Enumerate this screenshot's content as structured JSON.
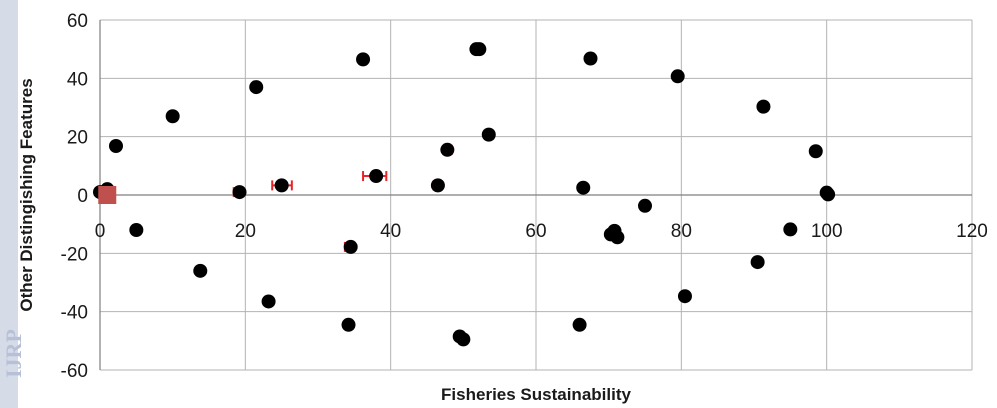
{
  "side_mark_text": "IJRP",
  "chart_data": {
    "type": "scatter",
    "title": "",
    "xlabel": "Fisheries Sustainability",
    "ylabel": "Other Distingishing Features",
    "xlim": [
      0,
      120
    ],
    "ylim": [
      -60,
      60
    ],
    "x_ticks": [
      0,
      20,
      40,
      60,
      80,
      100,
      120
    ],
    "y_ticks": [
      -60,
      -40,
      -20,
      0,
      20,
      40,
      60
    ],
    "grid": true,
    "legend": "none",
    "colors": {
      "points": "#000000",
      "highlight": "#c0504d",
      "error_bars": "#e8242b",
      "grid": "#b3b3b3"
    },
    "series": [
      {
        "points": [
          {
            "x": 0,
            "y": 1
          },
          {
            "x": 1,
            "y": 2
          },
          {
            "x": 2.2,
            "y": 16.8
          },
          {
            "x": 5,
            "y": -12
          },
          {
            "x": 10,
            "y": 27
          },
          {
            "x": 13.8,
            "y": -26
          },
          {
            "x": 19.2,
            "y": 1
          },
          {
            "x": 21.5,
            "y": 37
          },
          {
            "x": 23.2,
            "y": -36.5
          },
          {
            "x": 25,
            "y": 3.3
          },
          {
            "x": 34.2,
            "y": -44.5
          },
          {
            "x": 34.5,
            "y": -17.8
          },
          {
            "x": 36.2,
            "y": 46.5
          },
          {
            "x": 38,
            "y": 6.5
          },
          {
            "x": 46.5,
            "y": 3.3
          },
          {
            "x": 47.8,
            "y": 15.5
          },
          {
            "x": 49.5,
            "y": -48.5
          },
          {
            "x": 50,
            "y": -49.5
          },
          {
            "x": 51.8,
            "y": 50
          },
          {
            "x": 52.2,
            "y": 50
          },
          {
            "x": 53.5,
            "y": 20.7
          },
          {
            "x": 66,
            "y": -44.5
          },
          {
            "x": 66.5,
            "y": 2.5
          },
          {
            "x": 67.5,
            "y": 46.8
          },
          {
            "x": 70.3,
            "y": -13.5
          },
          {
            "x": 70.8,
            "y": -12.3
          },
          {
            "x": 71.2,
            "y": -14.5
          },
          {
            "x": 75,
            "y": -3.7
          },
          {
            "x": 79.5,
            "y": 40.7
          },
          {
            "x": 80.5,
            "y": -34.7
          },
          {
            "x": 90.5,
            "y": -23
          },
          {
            "x": 91.3,
            "y": 30.3
          },
          {
            "x": 95,
            "y": -11.8
          },
          {
            "x": 98.5,
            "y": 15
          },
          {
            "x": 100,
            "y": 0.8
          },
          {
            "x": 100.2,
            "y": 0.2
          }
        ]
      },
      {
        "marker": "square",
        "points": [
          {
            "x": 1,
            "y": 0
          }
        ]
      }
    ],
    "error_bars": [
      {
        "x": 19.2,
        "y": 1,
        "x_minus": 0.8,
        "x_plus": 0.4
      },
      {
        "x": 25,
        "y": 3.3,
        "x_minus": 1.3,
        "x_plus": 1.4
      },
      {
        "x": 34.5,
        "y": -17.8,
        "x_minus": 0.8,
        "x_plus": 0
      },
      {
        "x": 38,
        "y": 6.5,
        "x_minus": 1.8,
        "x_plus": 1.4
      },
      {
        "x": 46.5,
        "y": 3.3,
        "x_minus": 0.6,
        "x_plus": 0
      },
      {
        "x": 47.8,
        "y": 15.5,
        "x_minus": 0.5,
        "x_plus": 0.6
      },
      {
        "x": 53.5,
        "y": 20.7,
        "x_minus": 0.5,
        "x_plus": 0.6
      },
      {
        "x": 66.5,
        "y": 2.5,
        "x_minus": 0.5,
        "x_plus": 0
      },
      {
        "x": 70.3,
        "y": -13.5,
        "x_minus": 0.5,
        "x_plus": 1.3
      },
      {
        "x": 75,
        "y": -3.7,
        "x_minus": 0.5,
        "x_plus": 0
      }
    ]
  }
}
